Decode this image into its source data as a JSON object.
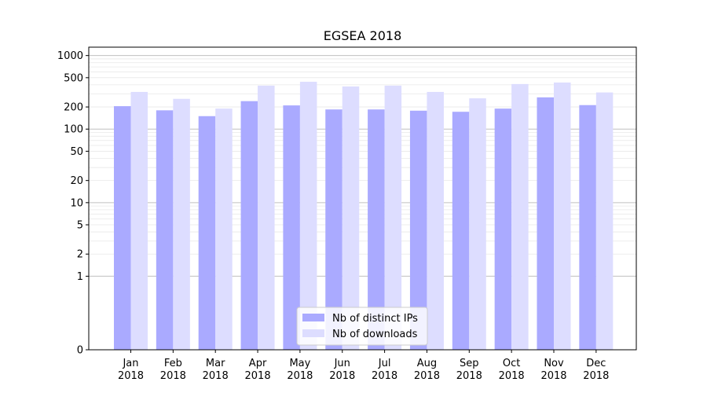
{
  "chart_data": {
    "type": "bar",
    "title": "EGSEA 2018",
    "xlabel": "",
    "ylabel": "",
    "y_scale": "symlog",
    "ylim": [
      0,
      1300
    ],
    "yticks": [
      0,
      1,
      2,
      5,
      10,
      20,
      50,
      100,
      200,
      500,
      1000
    ],
    "grid": true,
    "legend_position": "bottom-center",
    "categories": [
      [
        "Jan",
        "2018"
      ],
      [
        "Feb",
        "2018"
      ],
      [
        "Mar",
        "2018"
      ],
      [
        "Apr",
        "2018"
      ],
      [
        "May",
        "2018"
      ],
      [
        "Jun",
        "2018"
      ],
      [
        "Jul",
        "2018"
      ],
      [
        "Aug",
        "2018"
      ],
      [
        "Sep",
        "2018"
      ],
      [
        "Oct",
        "2018"
      ],
      [
        "Nov",
        "2018"
      ],
      [
        "Dec",
        "2018"
      ]
    ],
    "series": [
      {
        "name": "Nb of distinct IPs",
        "color": "#aaaaff",
        "values": [
          205,
          180,
          150,
          240,
          210,
          185,
          185,
          178,
          172,
          190,
          270,
          212
        ]
      },
      {
        "name": "Nb of downloads",
        "color": "#ddddff",
        "values": [
          320,
          258,
          190,
          390,
          440,
          380,
          390,
          320,
          262,
          410,
          430,
          315
        ]
      }
    ]
  }
}
